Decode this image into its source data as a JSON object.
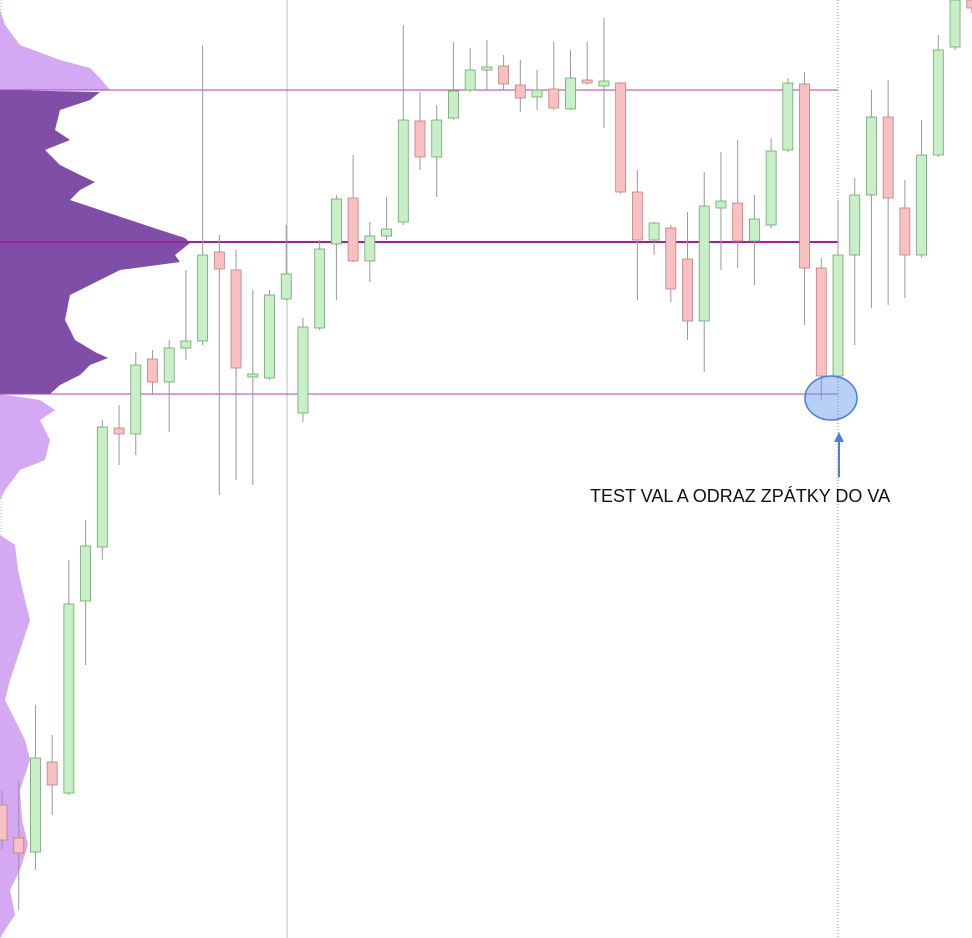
{
  "chart_data": {
    "type": "candlestick",
    "ylim": [
      0,
      938
    ],
    "up_color": "#c9efc9",
    "down_color": "#f8c0c0",
    "open": [
      133,
      100,
      86,
      176,
      145,
      337,
      391,
      510,
      504,
      579,
      556,
      590,
      597,
      686,
      668,
      561,
      560,
      639,
      525,
      610,
      694,
      740,
      677,
      702,
      716,
      817,
      781,
      820,
      848,
      868,
      872,
      853,
      841,
      849,
      829,
      858,
      852,
      855,
      746,
      698,
      710,
      679,
      617,
      730,
      735,
      697,
      713,
      788,
      854,
      670,
      562,
      683,
      743,
      821,
      730,
      683,
      783,
      891,
      938
    ],
    "high": [
      148,
      158,
      233,
      203,
      378,
      418,
      518,
      533,
      586,
      588,
      598,
      668,
      893,
      703,
      688,
      648,
      648,
      713,
      620,
      698,
      743,
      783,
      716,
      741,
      913,
      846,
      833,
      896,
      890,
      898,
      883,
      878,
      868,
      896,
      888,
      896,
      920,
      856,
      768,
      716,
      713,
      726,
      766,
      786,
      798,
      743,
      800,
      860,
      866,
      680,
      738,
      760,
      848,
      858,
      758,
      818,
      903,
      943,
      943
    ],
    "low": [
      88,
      28,
      68,
      123,
      143,
      273,
      378,
      473,
      483,
      543,
      506,
      578,
      593,
      443,
      458,
      453,
      558,
      638,
      516,
      608,
      638,
      676,
      656,
      698,
      713,
      768,
      741,
      818,
      846,
      848,
      848,
      826,
      828,
      828,
      828,
      853,
      810,
      744,
      638,
      683,
      636,
      598,
      566,
      668,
      670,
      653,
      710,
      786,
      613,
      538,
      560,
      593,
      630,
      633,
      640,
      680,
      781,
      888,
      925
    ],
    "close": [
      98,
      85,
      180,
      153,
      334,
      392,
      511,
      504,
      573,
      556,
      590,
      597,
      683,
      669,
      570,
      564,
      643,
      664,
      611,
      689,
      739,
      677,
      702,
      709,
      818,
      781,
      818,
      847,
      868,
      871,
      854,
      840,
      848,
      830,
      860,
      855,
      857,
      746,
      698,
      715,
      649,
      617,
      732,
      737,
      697,
      719,
      787,
      855,
      670,
      562,
      683,
      743,
      821,
      740,
      683,
      783,
      888,
      938,
      930
    ],
    "levels": [
      {
        "value": 848,
        "color": "#b040b0",
        "width": 1
      },
      {
        "value": 696,
        "color": "#a020a0",
        "width": 2
      },
      {
        "value": 544,
        "color": "#b040b0",
        "width": 1
      }
    ],
    "annotation": "TEST VAL A ODRAZ ZPÁTKY DO VA"
  }
}
